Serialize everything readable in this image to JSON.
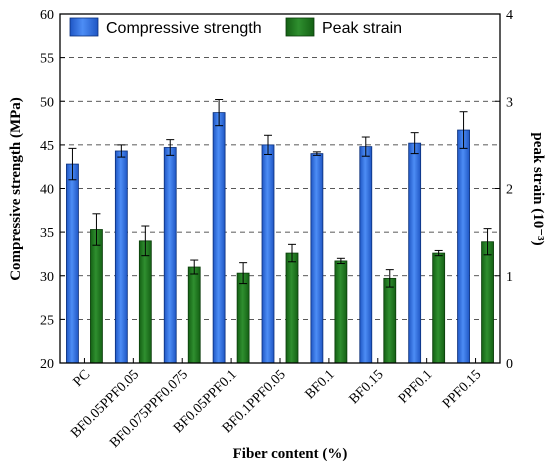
{
  "chart_data": {
    "type": "bar",
    "categories": [
      "PC",
      "BF0.05PPF0.05",
      "BF0.075PPF0.075",
      "BF0.05PPF0.1",
      "BF0.1PPF0.05",
      "BF0.1",
      "BF0.15",
      "PPF0.1",
      "PPF0.15"
    ],
    "series": [
      {
        "name": "Compressive strength",
        "axis": "left",
        "color": "#2f6fe0",
        "values": [
          42.8,
          44.3,
          44.7,
          48.7,
          45.0,
          44.0,
          44.8,
          45.2,
          46.7
        ],
        "errors": [
          1.8,
          0.7,
          0.9,
          1.5,
          1.1,
          0.2,
          1.1,
          1.2,
          2.1
        ]
      },
      {
        "name": "Peak strain",
        "axis": "right",
        "color": "#1e7a1e",
        "values": [
          1.53,
          1.4,
          1.1,
          1.03,
          1.26,
          1.17,
          0.97,
          1.26,
          1.39
        ],
        "errors": [
          0.18,
          0.17,
          0.08,
          0.12,
          0.1,
          0.03,
          0.1,
          0.03,
          0.15
        ]
      }
    ],
    "xlabel": "Fiber content (%)",
    "ylabel": "Compressive strength (MPa)",
    "ylabel_right": "peak strain (10⁻³)",
    "ylim": [
      20,
      60
    ],
    "ylim_right": [
      0,
      4
    ],
    "yticks": [
      "20",
      "25",
      "30",
      "35",
      "40",
      "45",
      "50",
      "55",
      "60"
    ],
    "yticks_right": [
      "0",
      "1",
      "2",
      "3",
      "4"
    ],
    "grid": "dashed horizontal",
    "legend_position": "top"
  }
}
